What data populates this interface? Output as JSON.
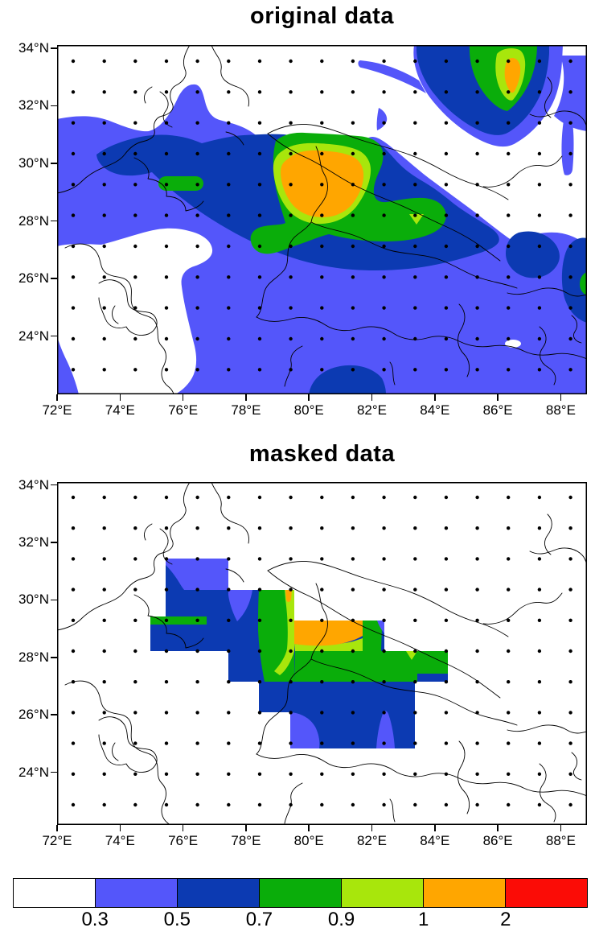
{
  "page": {
    "background": "#ffffff"
  },
  "panels": [
    {
      "id": "original",
      "title": "original data"
    },
    {
      "id": "masked",
      "title": "masked data"
    }
  ],
  "axes": {
    "x_ticks": [
      {
        "label": "72°E",
        "lon": 72
      },
      {
        "label": "74°E",
        "lon": 74
      },
      {
        "label": "76°E",
        "lon": 76
      },
      {
        "label": "78°E",
        "lon": 78
      },
      {
        "label": "80°E",
        "lon": 80
      },
      {
        "label": "82°E",
        "lon": 82
      },
      {
        "label": "84°E",
        "lon": 84
      },
      {
        "label": "86°E",
        "lon": 86
      },
      {
        "label": "88°E",
        "lon": 88
      }
    ],
    "y_ticks": [
      {
        "label": "34°N",
        "lat": 34
      },
      {
        "label": "32°N",
        "lat": 32
      },
      {
        "label": "30°N",
        "lat": 30
      },
      {
        "label": "28°N",
        "lat": 28
      },
      {
        "label": "26°N",
        "lat": 26
      },
      {
        "label": "24°N",
        "lat": 24
      }
    ]
  },
  "colorbar": {
    "boundary_labels": [
      "0.3",
      "0.5",
      "0.7",
      "0.9",
      "1",
      "2"
    ],
    "colors": [
      "#ffffff",
      "#5456fa",
      "#0c3ab2",
      "#0aad0a",
      "#a8e60c",
      "#ffa600",
      "#fb0c06"
    ]
  },
  "chart_data": {
    "type": "filled_contour_map",
    "titles": [
      "original data",
      "masked data"
    ],
    "levels": [
      0.3,
      0.5,
      0.7,
      0.9,
      1,
      2
    ],
    "palette": [
      "#ffffff",
      "#5456fa",
      "#0c3ab2",
      "#0aad0a",
      "#a8e60c",
      "#ffa600",
      "#fb0c06"
    ],
    "palette_meaning": [
      "< 0.3",
      "0.3–0.5",
      "0.5–0.7",
      "0.7–0.9",
      "0.9–1",
      "1–2",
      "> 2"
    ],
    "lon_range": [
      72,
      88.8
    ],
    "lat_range": [
      22,
      34.1
    ],
    "x_tick_values": [
      72,
      74,
      76,
      78,
      80,
      82,
      84,
      86,
      88
    ],
    "y_tick_values": [
      34,
      32,
      30,
      28,
      26,
      24
    ],
    "grid_dots": {
      "cols": 17,
      "rows": 11,
      "spacing_deg": 1,
      "lon_start": 72.5,
      "lat_start": 33.5
    },
    "map_overlay": "political boundaries (northern India states and Nepal)",
    "legend_position": "horizontal label bar below panels",
    "panels": [
      {
        "title": "original data",
        "coverage": "entire domain contoured",
        "features": [
          {
            "name": "primary maximum",
            "lon_range": [
              79.5,
              82
            ],
            "lat_range": [
              28.5,
              30.3
            ],
            "value_bin": "1-2 (orange core with 0.9-1 rim)"
          },
          {
            "name": "northeast maximum",
            "lon": 86.5,
            "lat": 32.7,
            "value_bin": "1-2 (orange core in green/dark-blue ring)"
          },
          {
            "name": "dark-blue 0.5-0.7 arc",
            "desc": "broad band across Indo-Gangetic plain from ~75E to ~85E"
          },
          {
            "name": "green 0.7-0.9 lobes",
            "desc": "around primary maximum, small pill near 75.5E 29.7N, patch near 84E 27.8N, patch at east edge ~26.7N"
          },
          {
            "name": "below-0.3 (white) areas",
            "desc": "northwest corner, top-centre block, lower-left blob, east-central band near 88E 28N"
          }
        ]
      },
      {
        "title": "masked data",
        "coverage": "stair-step grid-cell mask ~75.5-84.5E, 25.5-31.5N; field identical to original inside mask, white elsewhere",
        "features": [
          {
            "name": "primary maximum",
            "lon_range": [
              79.5,
              82
            ],
            "lat_range": [
              28.5,
              30.3
            ],
            "value_bin": "1-2 (orange block)"
          },
          {
            "name": "green 0.7-0.9 band",
            "desc": "diagonal band along Himalayan foothills inside mask"
          },
          {
            "name": "dark-blue 0.5-0.7",
            "desc": "dominant fill of masked block"
          },
          {
            "name": "light-blue 0.3-0.5",
            "desc": "north-west corner of mask and small plumes at southern edge"
          }
        ]
      }
    ]
  }
}
